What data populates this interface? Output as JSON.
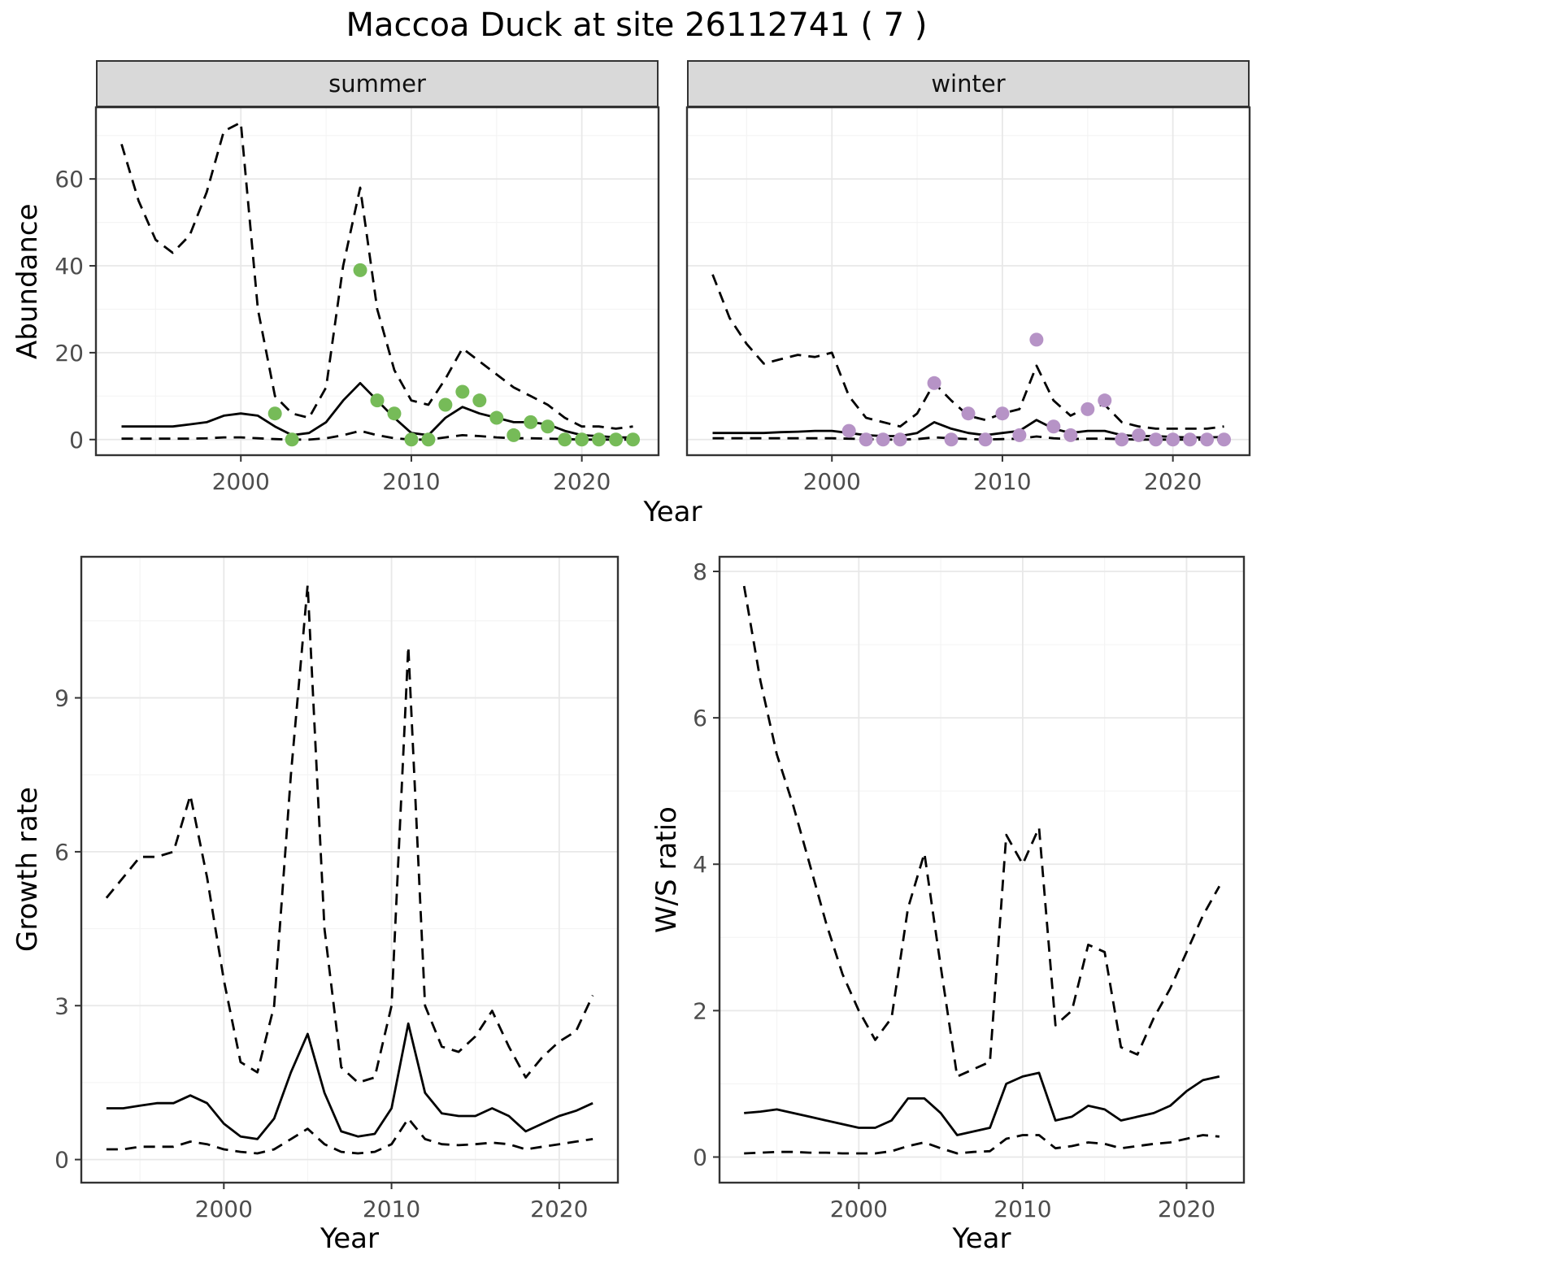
{
  "title": "Maccoa Duck at site 26112741 ( 7 )",
  "colors": {
    "summer_points": "#76BB58",
    "winter_points": "#B693C6",
    "line": "#000000",
    "panel_border": "#333333",
    "strip_background": "#D9D9D9",
    "grid_major": "#E8E8E8",
    "grid_minor": "#F4F4F4",
    "axis_text": "#4D4D4D"
  },
  "chart_data": [
    {
      "id": "abundance-summer",
      "type": "line",
      "facet_label": "summer",
      "xlabel": "Year",
      "ylabel": "Abundance",
      "xlim": [
        1991.5,
        2024.5
      ],
      "ylim": [
        -3.6,
        76.5
      ],
      "xticks": [
        2000,
        2010,
        2020
      ],
      "yticks": [
        0,
        20,
        40,
        60
      ],
      "show_ytick_labels": true,
      "grid": true,
      "x": [
        1993,
        1994,
        1995,
        1996,
        1997,
        1998,
        1999,
        2000,
        2001,
        2002,
        2003,
        2004,
        2005,
        2006,
        2007,
        2008,
        2009,
        2010,
        2011,
        2012,
        2013,
        2014,
        2015,
        2016,
        2017,
        2018,
        2019,
        2020,
        2021,
        2022,
        2023
      ],
      "series": [
        {
          "name": "upper-95ci",
          "style": "dashed",
          "y": [
            68,
            55,
            46,
            43,
            47,
            57,
            71,
            73,
            30,
            10,
            6,
            5,
            12,
            40,
            58,
            30,
            16,
            9,
            8,
            14,
            21,
            18,
            15,
            12,
            10,
            8,
            5,
            3,
            3,
            2.5,
            3
          ]
        },
        {
          "name": "median",
          "style": "solid",
          "y": [
            3,
            3,
            3,
            3,
            3.5,
            4,
            5.5,
            6,
            5.5,
            3,
            1,
            1.5,
            4,
            9,
            13,
            9,
            5,
            1.5,
            1,
            5,
            7.5,
            6,
            5,
            4,
            4,
            3.5,
            2,
            1,
            0.8,
            0.5,
            0.5
          ]
        },
        {
          "name": "lower-95ci",
          "style": "dashed",
          "y": [
            0.2,
            0.2,
            0.2,
            0.2,
            0.2,
            0.3,
            0.5,
            0.5,
            0.3,
            0.1,
            0,
            0,
            0.3,
            1,
            2,
            1,
            0.3,
            0,
            0,
            0.5,
            1,
            0.8,
            0.5,
            0.3,
            0.3,
            0.2,
            0.1,
            0,
            0,
            0,
            0
          ]
        },
        {
          "name": "observed-counts-summer",
          "style": "points",
          "color": "#76BB58",
          "x": [
            2002,
            2003,
            2007,
            2008,
            2009,
            2010,
            2011,
            2012,
            2013,
            2014,
            2015,
            2016,
            2017,
            2018,
            2019,
            2020,
            2021,
            2022,
            2023
          ],
          "y": [
            6,
            0,
            39,
            9,
            6,
            0,
            0,
            8,
            11,
            9,
            5,
            1,
            4,
            3,
            0,
            0,
            0,
            0,
            0
          ]
        }
      ]
    },
    {
      "id": "abundance-winter",
      "type": "line",
      "facet_label": "winter",
      "xlim": [
        1991.5,
        2024.5
      ],
      "ylim": [
        -3.6,
        76.5
      ],
      "xticks": [
        2000,
        2010,
        2020
      ],
      "yticks": [
        0,
        20,
        40,
        60
      ],
      "show_ytick_labels": false,
      "grid": true,
      "x": [
        1993,
        1994,
        1995,
        1996,
        1997,
        1998,
        1999,
        2000,
        2001,
        2002,
        2003,
        2004,
        2005,
        2006,
        2007,
        2008,
        2009,
        2010,
        2011,
        2012,
        2013,
        2014,
        2015,
        2016,
        2017,
        2018,
        2019,
        2020,
        2021,
        2022,
        2023
      ],
      "series": [
        {
          "name": "upper-95ci",
          "style": "dashed",
          "y": [
            38,
            28,
            22,
            17.5,
            18.5,
            19.5,
            19,
            20,
            10,
            5,
            4,
            3,
            6,
            13,
            9,
            5.5,
            4.5,
            6,
            7,
            17,
            9,
            5.5,
            7.5,
            8,
            4,
            3,
            2.5,
            2.5,
            2.5,
            2.5,
            3
          ]
        },
        {
          "name": "median",
          "style": "solid",
          "y": [
            1.5,
            1.5,
            1.5,
            1.5,
            1.7,
            1.8,
            2,
            2,
            1.5,
            1,
            0.8,
            0.8,
            1.5,
            4,
            2.5,
            1.5,
            1,
            1.5,
            2,
            4.5,
            2.5,
            1.5,
            2,
            2,
            1,
            0.8,
            0.8,
            0.6,
            0.5,
            0.5,
            0.6
          ]
        },
        {
          "name": "lower-95ci",
          "style": "dashed",
          "y": [
            0.3,
            0.3,
            0.3,
            0.3,
            0.3,
            0.3,
            0.3,
            0.3,
            0.2,
            0.1,
            0,
            0,
            0.1,
            0.5,
            0.3,
            0.1,
            0,
            0.1,
            0.2,
            0.7,
            0.3,
            0.1,
            0.2,
            0.2,
            0.1,
            0,
            0,
            0,
            0,
            0,
            0
          ]
        },
        {
          "name": "observed-counts-winter",
          "style": "points",
          "color": "#B693C6",
          "x": [
            2001,
            2002,
            2003,
            2004,
            2006,
            2007,
            2008,
            2009,
            2010,
            2011,
            2012,
            2013,
            2014,
            2015,
            2016,
            2017,
            2018,
            2019,
            2020,
            2021,
            2022,
            2023
          ],
          "y": [
            2,
            0,
            0,
            0,
            13,
            0,
            6,
            0,
            6,
            1,
            23,
            3,
            1,
            7,
            9,
            0,
            1,
            0,
            0,
            0,
            0,
            0
          ]
        }
      ]
    },
    {
      "id": "growth-rate",
      "type": "line",
      "xlabel": "Year",
      "ylabel": "Growth rate",
      "xlim": [
        1991.5,
        2023.5
      ],
      "ylim": [
        -0.45,
        11.75
      ],
      "xticks": [
        2000,
        2010,
        2020
      ],
      "yticks": [
        0,
        3,
        6,
        9
      ],
      "show_ytick_labels": true,
      "grid": true,
      "x": [
        1993,
        1994,
        1995,
        1996,
        1997,
        1998,
        1999,
        2000,
        2001,
        2002,
        2003,
        2004,
        2005,
        2006,
        2007,
        2008,
        2009,
        2010,
        2011,
        2012,
        2013,
        2014,
        2015,
        2016,
        2017,
        2018,
        2019,
        2020,
        2021,
        2022
      ],
      "series": [
        {
          "name": "upper-95ci",
          "style": "dashed",
          "y": [
            5.1,
            5.5,
            5.9,
            5.9,
            6.0,
            7.1,
            5.5,
            3.5,
            1.9,
            1.7,
            3.0,
            7.5,
            11.2,
            4.5,
            1.8,
            1.5,
            1.6,
            3.0,
            10.0,
            3.0,
            2.2,
            2.1,
            2.4,
            2.9,
            2.2,
            1.6,
            2.0,
            2.3,
            2.5,
            3.2
          ]
        },
        {
          "name": "median",
          "style": "solid",
          "y": [
            1.0,
            1.0,
            1.05,
            1.1,
            1.1,
            1.25,
            1.1,
            0.7,
            0.45,
            0.4,
            0.8,
            1.7,
            2.45,
            1.3,
            0.55,
            0.45,
            0.5,
            1.0,
            2.65,
            1.3,
            0.9,
            0.85,
            0.85,
            1.0,
            0.85,
            0.55,
            0.7,
            0.85,
            0.95,
            1.1
          ]
        },
        {
          "name": "lower-95ci",
          "style": "dashed",
          "y": [
            0.2,
            0.2,
            0.25,
            0.25,
            0.25,
            0.35,
            0.3,
            0.2,
            0.15,
            0.12,
            0.2,
            0.4,
            0.6,
            0.3,
            0.15,
            0.12,
            0.15,
            0.3,
            0.8,
            0.4,
            0.3,
            0.28,
            0.3,
            0.33,
            0.3,
            0.2,
            0.25,
            0.3,
            0.35,
            0.4
          ]
        }
      ]
    },
    {
      "id": "ws-ratio",
      "type": "line",
      "xlabel": "Year",
      "ylabel": "W/S ratio",
      "xlim": [
        1991.5,
        2023.5
      ],
      "ylim": [
        -0.35,
        8.2
      ],
      "xticks": [
        2000,
        2010,
        2020
      ],
      "yticks": [
        0,
        2,
        4,
        6,
        8
      ],
      "show_ytick_labels": true,
      "grid": true,
      "x": [
        1993,
        1994,
        1995,
        1996,
        1997,
        1998,
        1999,
        2000,
        2001,
        2002,
        2003,
        2004,
        2005,
        2006,
        2007,
        2008,
        2009,
        2010,
        2011,
        2012,
        2013,
        2014,
        2015,
        2016,
        2017,
        2018,
        2019,
        2020,
        2021,
        2022
      ],
      "series": [
        {
          "name": "upper-95ci",
          "style": "dashed",
          "y": [
            7.8,
            6.5,
            5.5,
            4.8,
            4.0,
            3.2,
            2.5,
            2.0,
            1.6,
            1.9,
            3.4,
            4.15,
            2.6,
            1.1,
            1.2,
            1.3,
            4.4,
            4.0,
            4.5,
            1.8,
            2.0,
            2.9,
            2.8,
            1.5,
            1.4,
            1.9,
            2.3,
            2.8,
            3.3,
            3.7
          ]
        },
        {
          "name": "median",
          "style": "solid",
          "y": [
            0.6,
            0.62,
            0.65,
            0.6,
            0.55,
            0.5,
            0.45,
            0.4,
            0.4,
            0.5,
            0.8,
            0.8,
            0.6,
            0.3,
            0.35,
            0.4,
            1.0,
            1.1,
            1.15,
            0.5,
            0.55,
            0.7,
            0.65,
            0.5,
            0.55,
            0.6,
            0.7,
            0.9,
            1.05,
            1.1
          ]
        },
        {
          "name": "lower-95ci",
          "style": "dashed",
          "y": [
            0.05,
            0.06,
            0.07,
            0.07,
            0.06,
            0.06,
            0.05,
            0.05,
            0.05,
            0.08,
            0.15,
            0.2,
            0.12,
            0.05,
            0.07,
            0.08,
            0.25,
            0.3,
            0.3,
            0.12,
            0.15,
            0.2,
            0.18,
            0.12,
            0.15,
            0.18,
            0.2,
            0.25,
            0.3,
            0.28
          ]
        }
      ]
    }
  ]
}
